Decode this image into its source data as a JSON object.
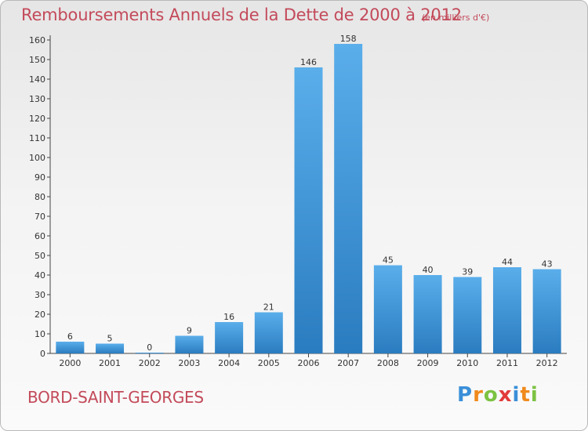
{
  "chart_data": {
    "type": "bar",
    "title": "Remboursements Annuels de la Dette de 2000 à 2012",
    "subtitle": "(en milliers d'€)",
    "categories": [
      "2000",
      "2001",
      "2002",
      "2003",
      "2004",
      "2005",
      "2006",
      "2007",
      "2008",
      "2009",
      "2010",
      "2011",
      "2012"
    ],
    "values": [
      6,
      5,
      0,
      9,
      16,
      21,
      146,
      158,
      45,
      40,
      39,
      44,
      43
    ],
    "ylim": [
      0,
      160
    ],
    "yticks": [
      0,
      10,
      20,
      30,
      40,
      50,
      60,
      70,
      80,
      90,
      100,
      110,
      120,
      130,
      140,
      150,
      160
    ],
    "xlabel": "",
    "ylabel": "",
    "bar_color": "#4a9fe0",
    "bar_color_dark": "#2d7fc3"
  },
  "footer": {
    "commune": "BORD-SAINT-GEORGES",
    "logo_letters": [
      "P",
      "r",
      "o",
      "x",
      "i",
      "t",
      "i"
    ],
    "logo_colors": [
      "#3a8fd8",
      "#f08a1c",
      "#7cc242",
      "#e23a3a",
      "#3a8fd8",
      "#f08a1c",
      "#7cc242"
    ]
  }
}
